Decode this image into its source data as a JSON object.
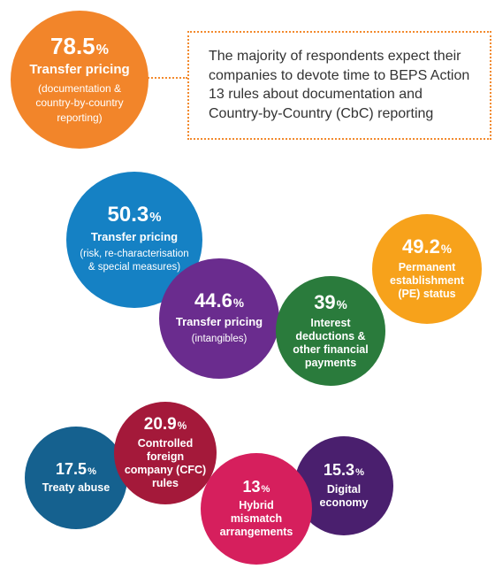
{
  "note_text": "The majority of respondents expect their companies to devote time to BEPS Action 13 rules about documentation and Country-by-Country (CbC) reporting",
  "colors": {
    "orange": "#f2852a",
    "blue": "#1581c4",
    "purple": "#6a2c8e",
    "green": "#2a7b3c",
    "amber": "#f7a21b",
    "teal": "#15618f",
    "crimson": "#a4193a",
    "magenta": "#d61f5d",
    "violet": "#4a1f6e",
    "note_border": "#f28a2e"
  },
  "chart_data": {
    "type": "bubble",
    "unit": "%",
    "items": [
      {
        "id": "tp-doc",
        "value": "78.5",
        "title": "Transfer pricing",
        "subtitle": "(documentation & country-by-country reporting)",
        "color": "#f2852a"
      },
      {
        "id": "tp-risk",
        "value": "50.3",
        "title": "Transfer pricing",
        "subtitle": "(risk, re-characterisation & special measures)",
        "color": "#1581c4"
      },
      {
        "id": "pe",
        "value": "49.2",
        "title": "Permanent establishment (PE) status",
        "subtitle": "",
        "color": "#f7a21b"
      },
      {
        "id": "tp-intang",
        "value": "44.6",
        "title": "Transfer pricing",
        "subtitle": "(intangibles)",
        "color": "#6a2c8e"
      },
      {
        "id": "interest",
        "value": "39",
        "title": "Interest deductions & other financial payments",
        "subtitle": "",
        "color": "#2a7b3c"
      },
      {
        "id": "cfc",
        "value": "20.9",
        "title": "Controlled foreign company (CFC) rules",
        "subtitle": "",
        "color": "#a4193a"
      },
      {
        "id": "treaty",
        "value": "17.5",
        "title": "Treaty abuse",
        "subtitle": "",
        "color": "#15618f"
      },
      {
        "id": "digital",
        "value": "15.3",
        "title": "Digital economy",
        "subtitle": "",
        "color": "#4a1f6e"
      },
      {
        "id": "hybrid",
        "value": "13",
        "title": "Hybrid mismatch arrangements",
        "subtitle": "",
        "color": "#d61f5d"
      }
    ]
  }
}
